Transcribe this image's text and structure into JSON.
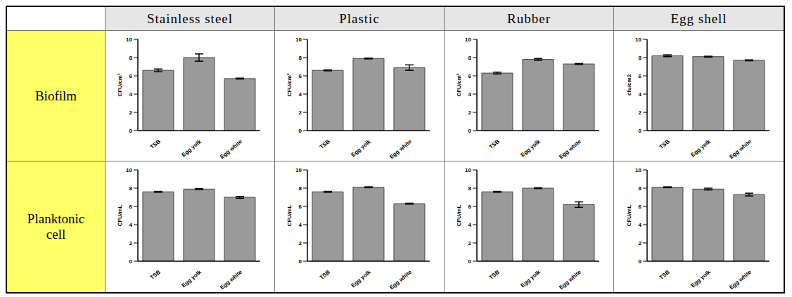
{
  "table": {
    "columns": [
      "Stainless steel",
      "Plastic",
      "Rubber",
      "Egg shell"
    ],
    "rows": [
      "Biofilm",
      "Planktonic cell"
    ]
  },
  "chart_data": [
    {
      "type": "bar",
      "y_label": "CFU/cm²",
      "categories": [
        "TSB",
        "Egg yolk",
        "Egg white"
      ],
      "values": [
        6.6,
        8.0,
        5.7
      ],
      "errors": [
        0.15,
        0.4,
        0.05
      ],
      "color": "#9a9a9a",
      "ylim": [
        0,
        10
      ],
      "yticks": [
        0,
        2,
        4,
        6,
        8,
        10
      ]
    },
    {
      "type": "bar",
      "y_label": "CFU/cm²",
      "categories": [
        "TSB",
        "Egg yolk",
        "Egg white"
      ],
      "values": [
        6.6,
        7.9,
        6.9
      ],
      "errors": [
        0.05,
        0.05,
        0.3
      ],
      "color": "#9a9a9a",
      "ylim": [
        0,
        10
      ],
      "yticks": [
        0,
        2,
        4,
        6,
        8,
        10
      ]
    },
    {
      "type": "bar",
      "y_label": "CFU/cm²",
      "categories": [
        "TSB",
        "Egg yolk",
        "Egg white"
      ],
      "values": [
        6.3,
        7.8,
        7.3
      ],
      "errors": [
        0.1,
        0.1,
        0.05
      ],
      "color": "#9a9a9a",
      "ylim": [
        0,
        10
      ],
      "yticks": [
        0,
        2,
        4,
        6,
        8,
        10
      ]
    },
    {
      "type": "bar",
      "y_label": "cfu/cm2",
      "categories": [
        "TSB",
        "Egg yolk",
        "Egg white"
      ],
      "values": [
        8.2,
        8.1,
        7.7
      ],
      "errors": [
        0.1,
        0.05,
        0.05
      ],
      "color": "#9a9a9a",
      "ylim": [
        0,
        10
      ],
      "yticks": [
        0,
        2,
        4,
        6,
        8,
        10
      ]
    },
    {
      "type": "bar",
      "y_label": "CFU/mL",
      "categories": [
        "TSB",
        "Egg yolk",
        "Egg white"
      ],
      "values": [
        7.6,
        7.9,
        7.0
      ],
      "errors": [
        0.05,
        0.05,
        0.1
      ],
      "color": "#9a9a9a",
      "ylim": [
        0,
        10
      ],
      "yticks": [
        0,
        2,
        4,
        6,
        8,
        10
      ]
    },
    {
      "type": "bar",
      "y_label": "CFU/mL",
      "categories": [
        "TSB",
        "Egg yolk",
        "Egg white"
      ],
      "values": [
        7.6,
        8.1,
        6.3
      ],
      "errors": [
        0.05,
        0.05,
        0.05
      ],
      "color": "#9a9a9a",
      "ylim": [
        0,
        10
      ],
      "yticks": [
        0,
        2,
        4,
        6,
        8,
        10
      ]
    },
    {
      "type": "bar",
      "y_label": "CFU/mL",
      "categories": [
        "TSB",
        "Egg yolk",
        "Egg white"
      ],
      "values": [
        7.6,
        8.0,
        6.2
      ],
      "errors": [
        0.05,
        0.05,
        0.3
      ],
      "color": "#9a9a9a",
      "ylim": [
        0,
        10
      ],
      "yticks": [
        0,
        2,
        4,
        6,
        8,
        10
      ]
    },
    {
      "type": "bar",
      "y_label": "CFU/mL",
      "categories": [
        "TSB",
        "Egg yolk",
        "Egg white"
      ],
      "values": [
        8.1,
        7.9,
        7.3
      ],
      "errors": [
        0.05,
        0.1,
        0.15
      ],
      "color": "#9a9a9a",
      "ylim": [
        0,
        10
      ],
      "yticks": [
        0,
        2,
        4,
        6,
        8,
        10
      ]
    }
  ]
}
